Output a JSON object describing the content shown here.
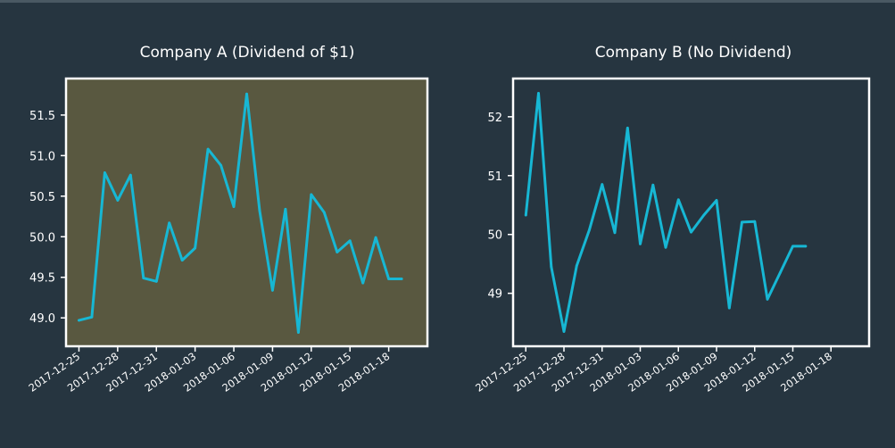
{
  "colors": {
    "background": "#263540",
    "frame": "#ffffff",
    "text": "#ffffff",
    "line": "#17b7d4",
    "panel_a_fill": "#595840",
    "panel_b_fill": "#263540"
  },
  "chart_data": [
    {
      "type": "line",
      "title": "Company A (Dividend of $1)",
      "xlabel": "",
      "ylabel": "",
      "grid": false,
      "x_tick_labels": [
        "2017-12-25",
        "2017-12-28",
        "2017-12-31",
        "2018-01-03",
        "2018-01-06",
        "2018-01-09",
        "2018-01-12",
        "2018-01-15",
        "2018-01-18"
      ],
      "y_ticks": [
        49.0,
        49.5,
        50.0,
        50.5,
        51.0,
        51.5
      ],
      "y_tick_labels": [
        "49.0",
        "49.5",
        "50.0",
        "50.5",
        "51.0",
        "51.5"
      ],
      "xlim": [
        "2017-12-24",
        "2018-01-21"
      ],
      "ylim": [
        48.65,
        51.95
      ],
      "series": [
        {
          "x": [
            "2017-12-25",
            "2017-12-26",
            "2017-12-27",
            "2017-12-28",
            "2017-12-29",
            "2017-12-30",
            "2017-12-31",
            "2018-01-01",
            "2018-01-02",
            "2018-01-03",
            "2018-01-04",
            "2018-01-05",
            "2018-01-06",
            "2018-01-07",
            "2018-01-08",
            "2018-01-09",
            "2018-01-10",
            "2018-01-11",
            "2018-01-12",
            "2018-01-13",
            "2018-01-14",
            "2018-01-15",
            "2018-01-16",
            "2018-01-17",
            "2018-01-18",
            "2018-01-19"
          ],
          "y": [
            48.97,
            49.01,
            50.79,
            50.45,
            50.76,
            49.49,
            49.45,
            50.17,
            49.71,
            49.86,
            51.08,
            50.88,
            50.37,
            51.76,
            50.32,
            49.34,
            50.34,
            48.82,
            50.52,
            50.3,
            49.81,
            49.95,
            49.43,
            49.99,
            49.48,
            49.48
          ]
        }
      ]
    },
    {
      "type": "line",
      "title": "Company B (No Dividend)",
      "xlabel": "",
      "ylabel": "",
      "grid": false,
      "x_tick_labels": [
        "2017-12-25",
        "2017-12-28",
        "2017-12-31",
        "2018-01-03",
        "2018-01-06",
        "2018-01-09",
        "2018-01-12",
        "2018-01-15",
        "2018-01-18"
      ],
      "y_ticks": [
        49,
        50,
        51,
        52
      ],
      "y_tick_labels": [
        "49",
        "50",
        "51",
        "52"
      ],
      "xlim": [
        "2017-12-24",
        "2018-01-21"
      ],
      "ylim": [
        48.1,
        52.65
      ],
      "series": [
        {
          "x": [
            "2017-12-25",
            "2017-12-26",
            "2017-12-27",
            "2017-12-28",
            "2017-12-29",
            "2017-12-30",
            "2017-12-31",
            "2018-01-01",
            "2018-01-02",
            "2018-01-03",
            "2018-01-04",
            "2018-01-05",
            "2018-01-06",
            "2018-01-07",
            "2018-01-08",
            "2018-01-09",
            "2018-01-10",
            "2018-01-11",
            "2018-01-12",
            "2018-01-13",
            "2018-01-14",
            "2018-01-15",
            "2018-01-16"
          ],
          "y": [
            50.33,
            52.4,
            49.45,
            48.35,
            49.47,
            50.08,
            50.85,
            50.03,
            51.81,
            49.84,
            50.84,
            49.78,
            50.59,
            50.04,
            50.33,
            50.58,
            48.75,
            50.21,
            50.22,
            48.9,
            49.35,
            49.8,
            49.8
          ]
        }
      ]
    }
  ]
}
